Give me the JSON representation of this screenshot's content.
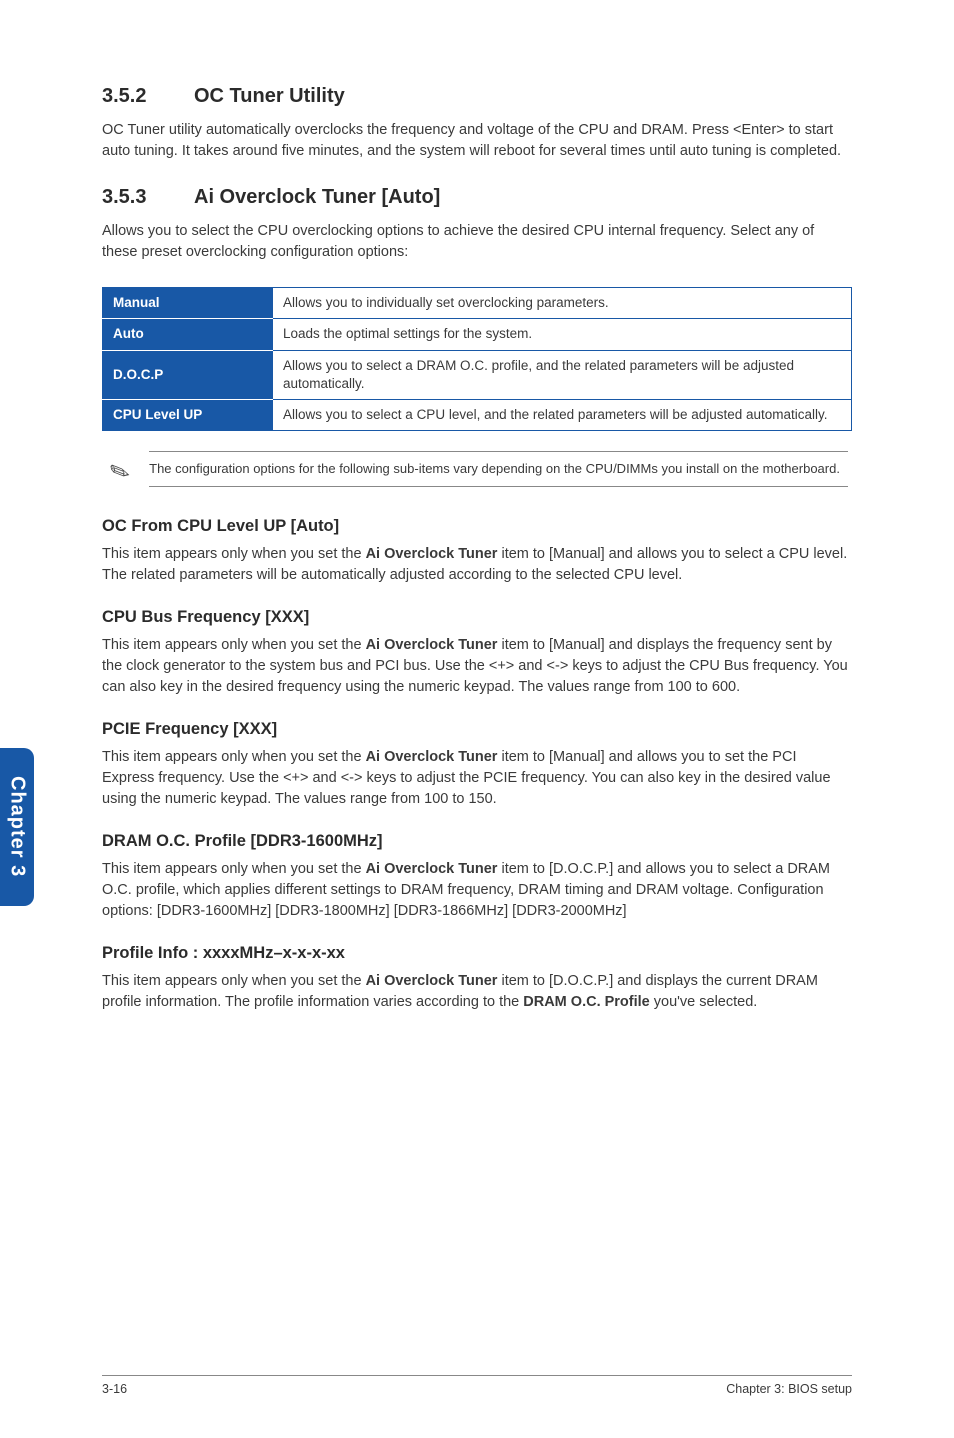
{
  "section1": {
    "num": "3.5.2",
    "title": "OC Tuner Utility",
    "body": "OC Tuner utility automatically overclocks the frequency and voltage of the CPU and DRAM. Press <Enter> to start auto tuning. It takes around five minutes, and the system will reboot for several times until auto tuning is completed."
  },
  "section2": {
    "num": "3.5.3",
    "title": "Ai Overclock Tuner [Auto]",
    "body": "Allows you to select the CPU overclocking options to achieve the desired CPU internal frequency. Select any of these preset overclocking configuration options:"
  },
  "table": {
    "rows": [
      {
        "label": "Manual",
        "desc": "Allows you to individually set overclocking parameters."
      },
      {
        "label": "Auto",
        "desc": "Loads the optimal settings for the system."
      },
      {
        "label": "D.O.C.P",
        "desc": "Allows you to select a DRAM O.C. profile, and the related parameters will be adjusted automatically."
      },
      {
        "label": "CPU Level UP",
        "desc": "Allows you to select a CPU level, and the related parameters will be adjusted automatically."
      }
    ]
  },
  "note": "The configuration options for the following sub-items vary depending on the CPU/DIMMs you install on the motherboard.",
  "sub1": {
    "title": "OC From CPU Level UP [Auto]",
    "pre": "This item appears only when you set the ",
    "bold": "Ai Overclock Tuner",
    "post": " item to [Manual] and allows you to select a CPU level. The related parameters will be automatically adjusted according to the selected CPU level."
  },
  "sub2": {
    "title": "CPU Bus Frequency [XXX]",
    "pre": "This item appears only when you set the ",
    "bold": "Ai Overclock Tuner",
    "post": " item to [Manual] and displays the frequency sent by the clock generator to the system bus and PCI bus. Use the <+> and <-> keys to adjust the CPU Bus frequency. You can also key in the desired frequency using the numeric keypad. The values range from 100 to 600."
  },
  "sub3": {
    "title": "PCIE Frequency [XXX]",
    "pre": "This item appears only when you set the ",
    "bold": "Ai Overclock Tuner",
    "post": " item to [Manual] and allows you to set the PCI Express frequency. Use the <+> and <-> keys to adjust the PCIE frequency. You can also key in the desired value using the numeric keypad. The values range from 100 to 150."
  },
  "sub4": {
    "title": "DRAM O.C. Profile [DDR3-1600MHz]",
    "pre": "This item appears only when you set the ",
    "bold": "Ai Overclock Tuner",
    "post": " item to [D.O.C.P.] and allows you to select a DRAM O.C. profile, which applies different settings to DRAM frequency, DRAM timing and DRAM voltage. Configuration options: [DDR3-1600MHz] [DDR3-1800MHz] [DDR3-1866MHz] [DDR3-2000MHz]"
  },
  "sub5": {
    "title": "Profile Info : xxxxMHz–x-x-x-xx",
    "pre": "This item appears only when you set the ",
    "bold1": "Ai Overclock Tuner",
    "mid": " item to [D.O.C.P.] and displays the current DRAM profile information. The profile information varies according to the ",
    "bold2": "DRAM O.C. Profile",
    "post": " you've selected."
  },
  "sidetab": "Chapter 3",
  "footer": {
    "left": "3-16",
    "right": "Chapter 3: BIOS setup"
  },
  "colors": {
    "blue": "#1858a6",
    "text": "#3a3a3a",
    "border": "#888888",
    "white": "#ffffff"
  }
}
